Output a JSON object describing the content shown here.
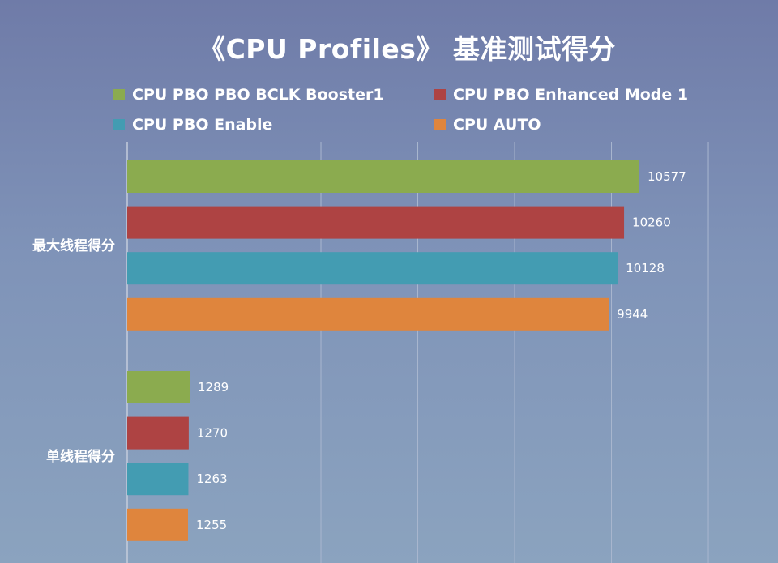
{
  "chart_data": {
    "type": "bar",
    "orientation": "horizontal",
    "title": "《CPU Profiles》 基准测试得分",
    "categories": [
      "最大线程得分",
      "单线程得分"
    ],
    "series": [
      {
        "name": "CPU PBO PBO BCLK Booster1",
        "color": "#8bab4f",
        "values": [
          10577,
          1289
        ]
      },
      {
        "name": "CPU PBO Enhanced Mode 1",
        "color": "#ae4343",
        "values": [
          10260,
          1270
        ]
      },
      {
        "name": "CPU PBO Enable",
        "color": "#439cb2",
        "values": [
          10128,
          1263
        ]
      },
      {
        "name": "CPU AUTO",
        "color": "#df853d",
        "values": [
          9944,
          1255
        ]
      }
    ],
    "xlim": [
      0,
      12000
    ],
    "grid": true,
    "legend_position": "top"
  }
}
